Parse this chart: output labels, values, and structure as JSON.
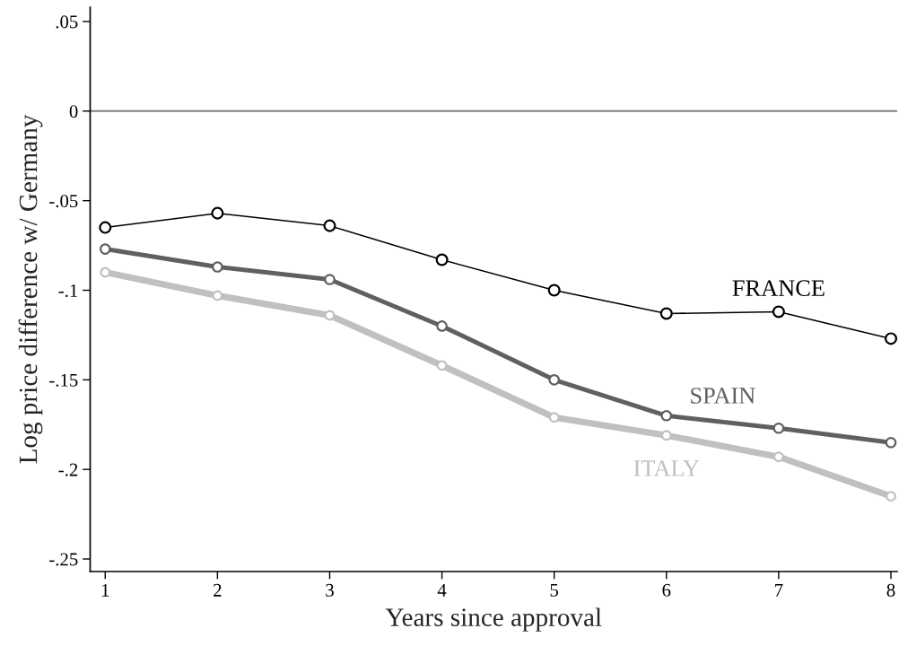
{
  "chart_data": {
    "type": "line",
    "xlabel": "Years since approval",
    "ylabel": "Log price difference w/ Germany",
    "x": [
      1,
      2,
      3,
      4,
      5,
      6,
      7,
      8
    ],
    "series": [
      {
        "name": "FRANCE",
        "color": "#000000",
        "values": [
          -0.065,
          -0.057,
          -0.064,
          -0.083,
          -0.1,
          -0.113,
          -0.112,
          -0.127
        ]
      },
      {
        "name": "SPAIN",
        "color": "#606060",
        "values": [
          -0.077,
          -0.087,
          -0.094,
          -0.12,
          -0.15,
          -0.17,
          -0.177,
          -0.185
        ]
      },
      {
        "name": "ITALY",
        "color": "#c0c0c0",
        "values": [
          -0.09,
          -0.103,
          -0.114,
          -0.142,
          -0.171,
          -0.181,
          -0.193,
          -0.215
        ]
      }
    ],
    "xlim": [
      0.866,
      8.056
    ],
    "ylim": [
      -0.257,
      0.058
    ],
    "xticks": [
      1,
      2,
      3,
      4,
      5,
      6,
      7,
      8
    ],
    "yticks": [
      {
        "value": 0.05,
        "label": ".05"
      },
      0,
      {
        "value": -0.05,
        "label": "-.05"
      },
      {
        "value": -0.1,
        "label": "-.1"
      },
      {
        "value": -0.15,
        "label": "-.15"
      },
      {
        "value": -0.2,
        "label": "-.2"
      },
      {
        "value": -0.25,
        "label": "-.25"
      }
    ],
    "ref_lines": [
      {
        "axis": "y",
        "value": 0,
        "color": "#808080"
      }
    ],
    "marker": "circle",
    "line_style": "solid",
    "grid": false,
    "legend": false
  }
}
